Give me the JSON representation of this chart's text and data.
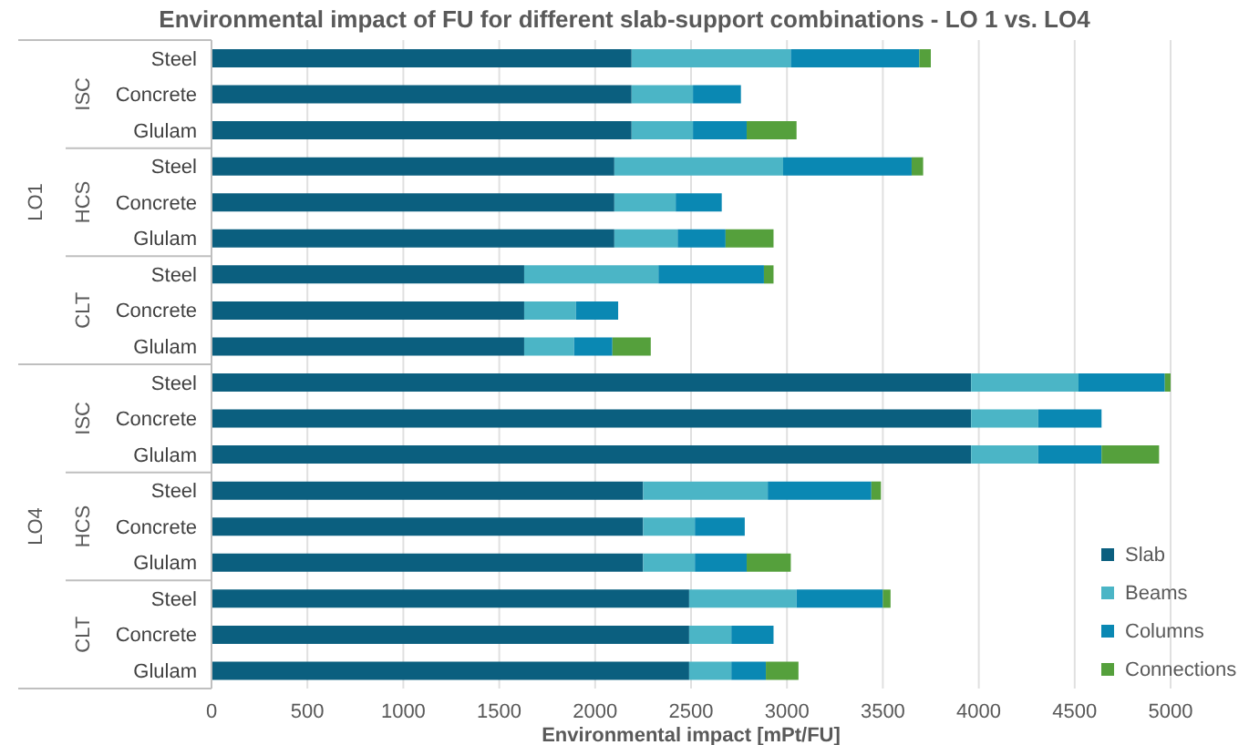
{
  "chart_data": {
    "type": "bar",
    "orientation": "horizontal",
    "stacked": true,
    "title": "Environmental impact of FU for different slab-support combinations - LO 1 vs. LO4",
    "xlabel": "Environmental impact [mPt/FU]",
    "categories": [
      "Steel",
      "Concrete",
      "Glulam",
      "Steel",
      "Concrete",
      "Glulam",
      "Steel",
      "Concrete",
      "Glulam",
      "Steel",
      "Concrete",
      "Glulam",
      "Steel",
      "Concrete",
      "Glulam",
      "Steel",
      "Concrete",
      "Glulam"
    ],
    "series": [
      {
        "name": "Slab",
        "color": "#0b5f7f",
        "values": [
          2190,
          2190,
          2190,
          2100,
          2100,
          2100,
          1630,
          1630,
          1630,
          3960,
          3960,
          3960,
          2250,
          2250,
          2250,
          2490,
          2490,
          2490
        ]
      },
      {
        "name": "Beams",
        "color": "#4bb5c6",
        "values": [
          830,
          320,
          320,
          880,
          320,
          330,
          700,
          270,
          260,
          560,
          350,
          350,
          650,
          270,
          270,
          560,
          220,
          220
        ]
      },
      {
        "name": "Columns",
        "color": "#0a88b3",
        "values": [
          670,
          250,
          280,
          670,
          240,
          250,
          550,
          220,
          200,
          450,
          330,
          330,
          540,
          260,
          270,
          450,
          220,
          180
        ]
      },
      {
        "name": "Connections",
        "color": "#55a03c",
        "values": [
          60,
          null,
          260,
          60,
          null,
          250,
          50,
          null,
          200,
          30,
          null,
          300,
          50,
          null,
          230,
          40,
          null,
          170
        ]
      }
    ],
    "annotations": [
      "ISC",
      "HCS",
      "CLT",
      "ISC",
      "HCS",
      "CLT",
      "LO1",
      "LO4"
    ],
    "xlim": [
      0,
      5000
    ],
    "xticks": [
      0,
      500,
      1000,
      1500,
      2000,
      2500,
      3000,
      3500,
      4000,
      4500,
      5000
    ],
    "grid": "x",
    "legend": "bottom right"
  }
}
